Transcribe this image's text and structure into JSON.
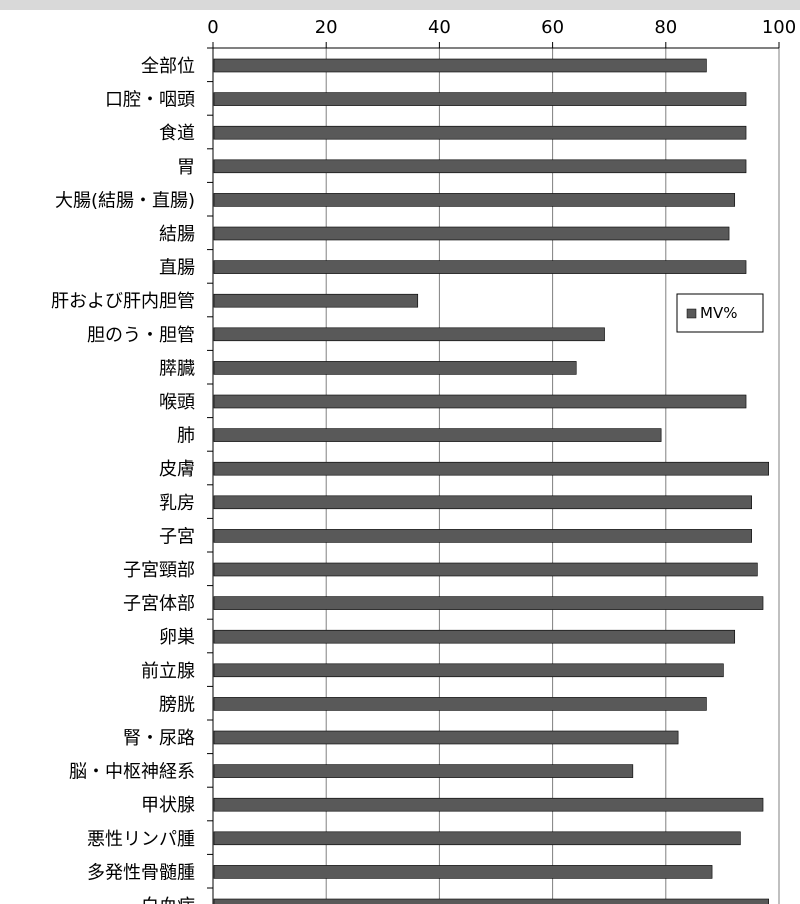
{
  "chart_data": {
    "type": "bar",
    "orientation": "horizontal",
    "categories": [
      "全部位",
      "口腔・咽頭",
      "食道",
      "胃",
      "大腸(結腸・直腸)",
      "結腸",
      "直腸",
      "肝および肝内胆管",
      "胆のう・胆管",
      "膵臓",
      "喉頭",
      "肺",
      "皮膚",
      "乳房",
      "子宮",
      "子宮頸部",
      "子宮体部",
      "卵巣",
      "前立腺",
      "膀胱",
      "腎・尿路",
      "脳・中枢神経系",
      "甲状腺",
      "悪性リンパ腫",
      "多発性骨髄腫",
      "白血病"
    ],
    "series": [
      {
        "name": "MV%",
        "values": [
          87,
          94,
          94,
          94,
          92,
          91,
          94,
          36,
          69,
          64,
          94,
          79,
          98,
          95,
          95,
          96,
          97,
          92,
          90,
          87,
          82,
          74,
          97,
          93,
          88,
          98
        ]
      }
    ],
    "xlim": [
      0,
      100
    ],
    "xticks": [
      "0",
      "20",
      "40",
      "60",
      "80",
      "100"
    ],
    "grid": true,
    "legend_position": "right",
    "title": "",
    "xlabel": "",
    "ylabel": "",
    "colors": {
      "bar": "#595959",
      "bar_edge": "#000000",
      "grid": "#808080",
      "axis": "#000000"
    }
  }
}
